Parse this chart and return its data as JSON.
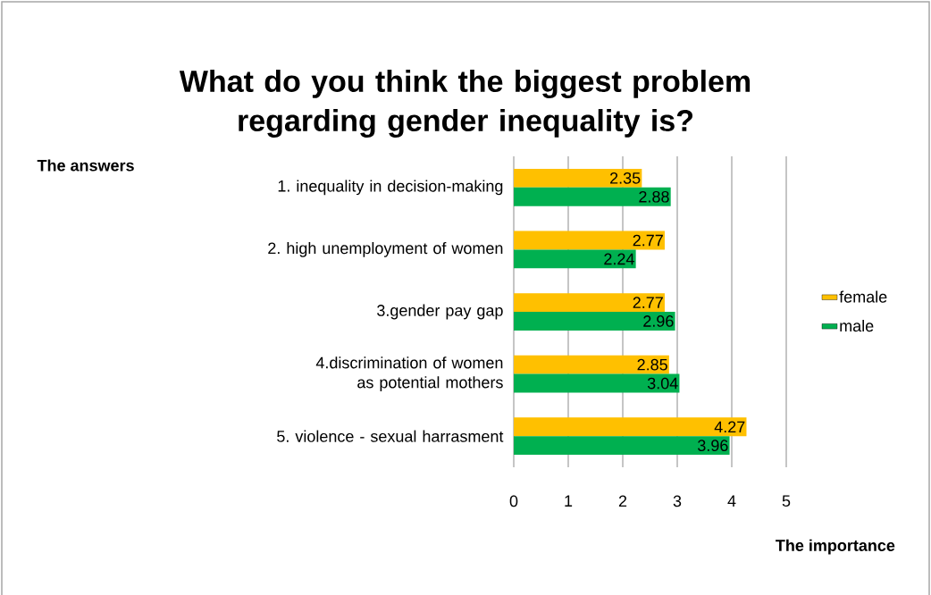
{
  "chart_data": {
    "type": "bar",
    "orientation": "horizontal",
    "title": "What do you think the biggest problem regarding gender inequality is?",
    "xlabel": "The importance",
    "annotations": [
      "The answers"
    ],
    "categories": [
      "1. inequality in decision-making",
      "2. high unemployment of women",
      "3.gender pay gap",
      "4.discrimination of women as potential mothers",
      "5. violence - sexual harrasment"
    ],
    "series": [
      {
        "name": "female",
        "color": "#ffc000",
        "values": [
          2.35,
          2.77,
          2.77,
          2.85,
          4.27
        ]
      },
      {
        "name": "male",
        "color": "#00b050",
        "values": [
          2.88,
          2.24,
          2.96,
          3.04,
          3.96
        ]
      }
    ],
    "xlim": [
      0,
      5
    ],
    "xticks": [
      0,
      1,
      2,
      3,
      4,
      5
    ],
    "grid": "x",
    "legend": "right",
    "data_labels": true
  }
}
